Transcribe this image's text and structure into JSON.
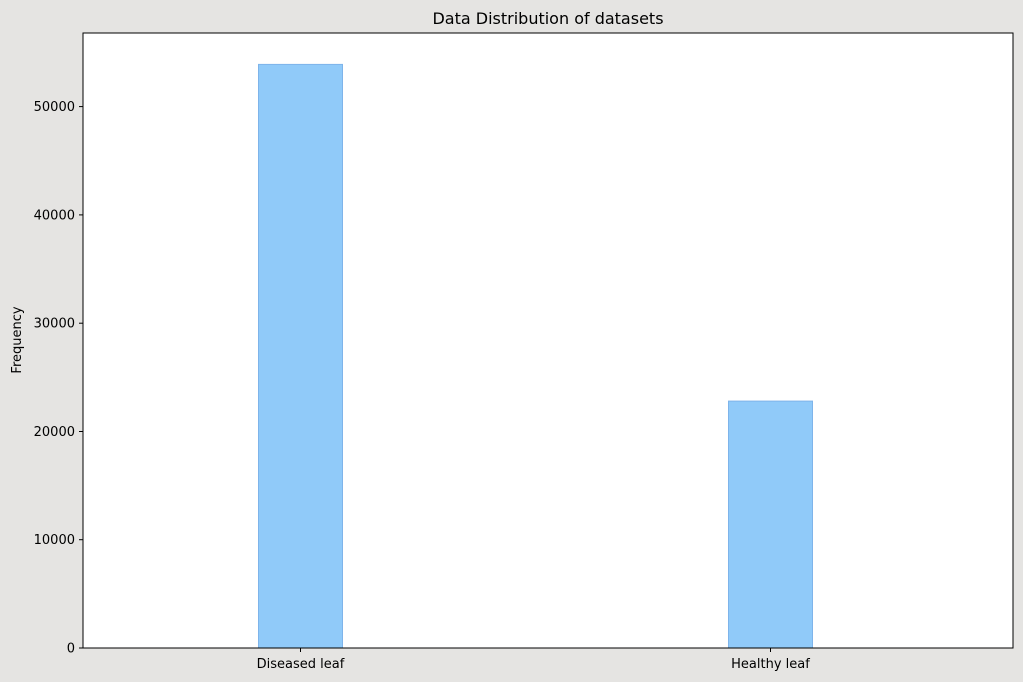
{
  "chart_data": {
    "type": "bar",
    "title": "Data Distribution of datasets",
    "xlabel": "",
    "ylabel": "Frequency",
    "categories": [
      "Diseased leaf",
      "Healthy leaf"
    ],
    "values": [
      53900,
      22800
    ],
    "ylim": [
      0,
      56800
    ],
    "yticks": [
      0,
      10000,
      20000,
      30000,
      40000,
      50000
    ],
    "grid": false,
    "colors": {
      "bar_fill": "#90caf9",
      "bar_edge": "#7eb4ea",
      "plot_background": "#ffffff",
      "figure_background": "#e5e4e2"
    }
  }
}
